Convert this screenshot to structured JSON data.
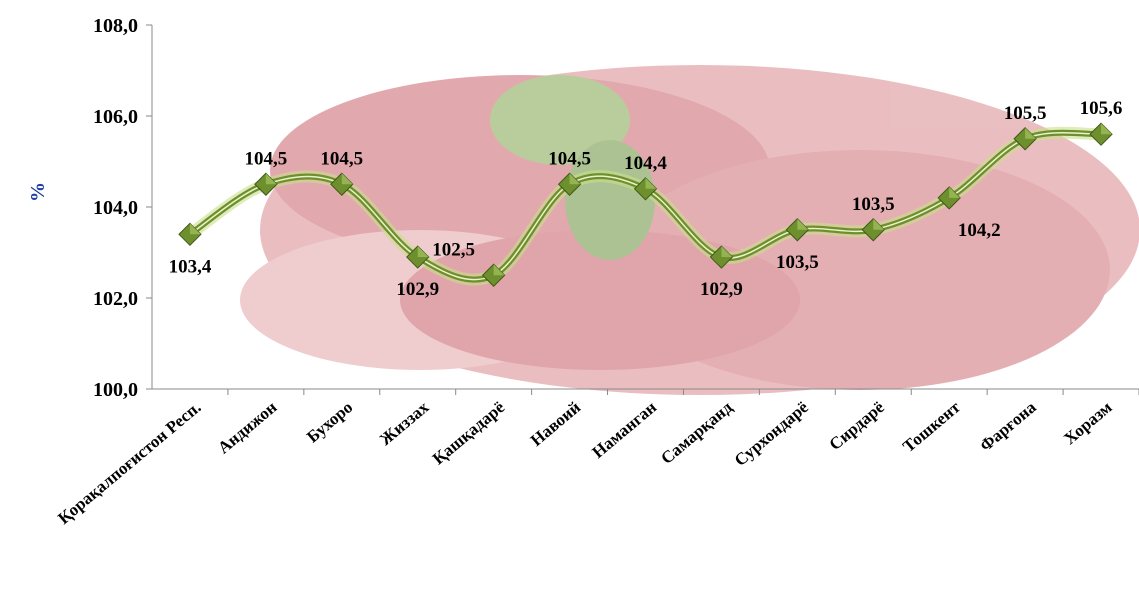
{
  "chart_data": {
    "type": "line",
    "y_label": "%",
    "categories": [
      "Қорақалпоғистон Респ.",
      "Андижон",
      "Бухоро",
      "Жиззах",
      "Қашқадарё",
      "Навоий",
      "Наманган",
      "Самарқанд",
      "Сурхондарё",
      "Сирдарё",
      "Тошкент",
      "Фарғона",
      "Хоразм"
    ],
    "series": [
      {
        "name": "%",
        "color": "#6e8f2e",
        "values": [
          103.4,
          104.5,
          104.5,
          102.9,
          102.5,
          104.5,
          104.4,
          102.9,
          103.5,
          103.5,
          104.2,
          105.5,
          105.6
        ],
        "value_labels": [
          "103,4",
          "104,5",
          "104,5",
          "102,9",
          "102,5",
          "104,5",
          "104,4",
          "102,9",
          "103,5",
          "103,5",
          "104,2",
          "105,5",
          "105,6"
        ]
      }
    ],
    "ylim": [
      100,
      108
    ],
    "yticks": [
      {
        "value": 100,
        "label": "100,0"
      },
      {
        "value": 102,
        "label": "102,0"
      },
      {
        "value": 104,
        "label": "104,0"
      },
      {
        "value": 106,
        "label": "106,0"
      },
      {
        "value": 108,
        "label": "108,0"
      }
    ],
    "grid": false
  }
}
